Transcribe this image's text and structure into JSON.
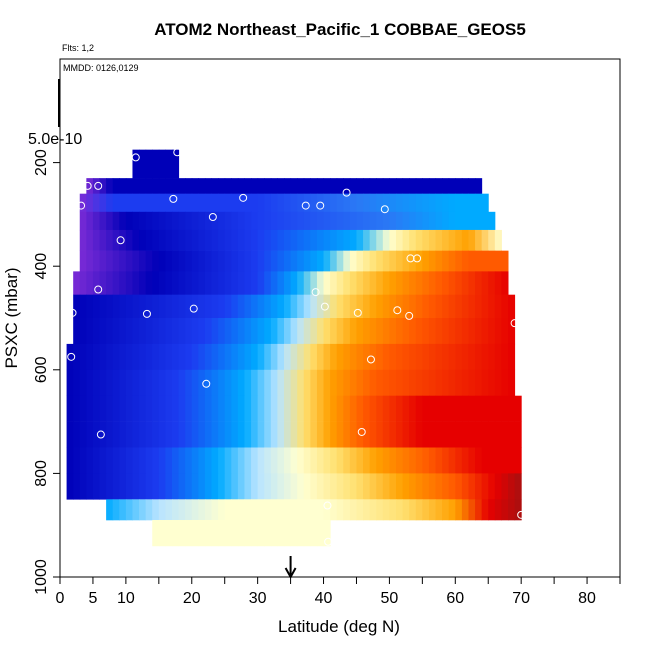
{
  "chart_data": {
    "type": "heatmap",
    "title": "ATOM2 Northeast_Pacific_1 COBBAE_GEOS5",
    "flights_label": "Flts: 1,2",
    "dates_label": "MMDD: 0126,0129",
    "colorbar_label": "5.0e-10",
    "xlabel": "Latitude (deg N)",
    "ylabel": "PSXC (mbar)",
    "xlim": [
      0,
      85
    ],
    "ylim": [
      1000,
      0
    ],
    "x_ticks": [
      0,
      5,
      10,
      20,
      30,
      40,
      50,
      60,
      70,
      80
    ],
    "x_tick_labels": [
      "0",
      "5",
      "10",
      "20",
      "30",
      "40",
      "50",
      "60",
      "70",
      "80"
    ],
    "x_minor_ticks": [
      15,
      25,
      35,
      45,
      55,
      65,
      75,
      85
    ],
    "y_ticks": [
      200,
      400,
      600,
      800,
      1000
    ],
    "y_tick_labels": [
      "200",
      "400",
      "600",
      "800",
      "1000"
    ],
    "arrow_latitude": 35,
    "colors": [
      "#00007a",
      "#0000b8",
      "#1c3cf0",
      "#2a78f5",
      "#00aaff",
      "#b8e4ff",
      "#ffffd0",
      "#ffe070",
      "#ffa000",
      "#ff5a00",
      "#e60000",
      "#a81010",
      "#7a2bd6"
    ],
    "bands": [
      {
        "p_top": 175,
        "p_bot": 230,
        "x_start": 11,
        "x_end": 18,
        "stops": [
          [
            11,
            1
          ]
        ]
      },
      {
        "p_top": 230,
        "p_bot": 260,
        "x_start": 4,
        "x_end": 64,
        "stops": [
          [
            4,
            12
          ],
          [
            8,
            1
          ],
          [
            40,
            1
          ],
          [
            64,
            1
          ]
        ]
      },
      {
        "p_top": 260,
        "p_bot": 295,
        "x_start": 3,
        "x_end": 65,
        "stops": [
          [
            3,
            12
          ],
          [
            8,
            2
          ],
          [
            30,
            2
          ],
          [
            45,
            3
          ],
          [
            60,
            4
          ],
          [
            65,
            4
          ]
        ]
      },
      {
        "p_top": 295,
        "p_bot": 330,
        "x_start": 3,
        "x_end": 66,
        "stops": [
          [
            3,
            12
          ],
          [
            10,
            1
          ],
          [
            30,
            2
          ],
          [
            50,
            3
          ],
          [
            60,
            4
          ],
          [
            66,
            4
          ]
        ]
      },
      {
        "p_top": 330,
        "p_bot": 370,
        "x_start": 3,
        "x_end": 67,
        "stops": [
          [
            3,
            12
          ],
          [
            12,
            1
          ],
          [
            30,
            2
          ],
          [
            45,
            4
          ],
          [
            50,
            6
          ],
          [
            54,
            7
          ],
          [
            62,
            8
          ],
          [
            67,
            6
          ]
        ]
      },
      {
        "p_top": 370,
        "p_bot": 410,
        "x_start": 3,
        "x_end": 68,
        "stops": [
          [
            3,
            12
          ],
          [
            15,
            1
          ],
          [
            30,
            2
          ],
          [
            40,
            4
          ],
          [
            44,
            6
          ],
          [
            48,
            7
          ],
          [
            55,
            8
          ],
          [
            62,
            9
          ],
          [
            68,
            9
          ]
        ]
      },
      {
        "p_top": 410,
        "p_bot": 455,
        "x_start": 2,
        "x_end": 68,
        "stops": [
          [
            2,
            12
          ],
          [
            14,
            1
          ],
          [
            30,
            2
          ],
          [
            36,
            4
          ],
          [
            40,
            6
          ],
          [
            44,
            7
          ],
          [
            50,
            8
          ],
          [
            58,
            9
          ],
          [
            68,
            10
          ]
        ]
      },
      {
        "p_top": 455,
        "p_bot": 500,
        "x_start": 2,
        "x_end": 69,
        "stops": [
          [
            2,
            1
          ],
          [
            25,
            2
          ],
          [
            34,
            4
          ],
          [
            38,
            5
          ],
          [
            42,
            7
          ],
          [
            48,
            8
          ],
          [
            56,
            9
          ],
          [
            69,
            10
          ]
        ]
      },
      {
        "p_top": 500,
        "p_bot": 550,
        "x_start": 2,
        "x_end": 69,
        "stops": [
          [
            2,
            1
          ],
          [
            22,
            2
          ],
          [
            32,
            4
          ],
          [
            36,
            5
          ],
          [
            40,
            7
          ],
          [
            45,
            8
          ],
          [
            54,
            9
          ],
          [
            69,
            10
          ]
        ]
      },
      {
        "p_top": 550,
        "p_bot": 600,
        "x_start": 1,
        "x_end": 69,
        "stops": [
          [
            1,
            1
          ],
          [
            20,
            2
          ],
          [
            30,
            4
          ],
          [
            34,
            5
          ],
          [
            38,
            7
          ],
          [
            42,
            8
          ],
          [
            50,
            9
          ],
          [
            69,
            10
          ]
        ]
      },
      {
        "p_top": 600,
        "p_bot": 650,
        "x_start": 1,
        "x_end": 69,
        "stops": [
          [
            1,
            1
          ],
          [
            18,
            2
          ],
          [
            28,
            4
          ],
          [
            33,
            5
          ],
          [
            37,
            7
          ],
          [
            41,
            8
          ],
          [
            48,
            9
          ],
          [
            69,
            10
          ]
        ]
      },
      {
        "p_top": 650,
        "p_bot": 700,
        "x_start": 1,
        "x_end": 70,
        "stops": [
          [
            1,
            1
          ],
          [
            18,
            2
          ],
          [
            28,
            4
          ],
          [
            33,
            5
          ],
          [
            37,
            7
          ],
          [
            41,
            8
          ],
          [
            46,
            9
          ],
          [
            55,
            10
          ],
          [
            70,
            10
          ]
        ]
      },
      {
        "p_top": 700,
        "p_bot": 750,
        "x_start": 1,
        "x_end": 70,
        "stops": [
          [
            1,
            1
          ],
          [
            18,
            2
          ],
          [
            28,
            4
          ],
          [
            33,
            5
          ],
          [
            37,
            7
          ],
          [
            41,
            8
          ],
          [
            46,
            9
          ],
          [
            55,
            10
          ],
          [
            70,
            10
          ]
        ]
      },
      {
        "p_top": 750,
        "p_bot": 800,
        "x_start": 1,
        "x_end": 70,
        "stops": [
          [
            1,
            1
          ],
          [
            15,
            2
          ],
          [
            24,
            4
          ],
          [
            30,
            5
          ],
          [
            36,
            6
          ],
          [
            42,
            7
          ],
          [
            48,
            8
          ],
          [
            56,
            9
          ],
          [
            64,
            10
          ],
          [
            70,
            10
          ]
        ]
      },
      {
        "p_top": 800,
        "p_bot": 850,
        "x_start": 1,
        "x_end": 70,
        "stops": [
          [
            1,
            1
          ],
          [
            15,
            2
          ],
          [
            24,
            4
          ],
          [
            30,
            5
          ],
          [
            37,
            6
          ],
          [
            45,
            7
          ],
          [
            52,
            8
          ],
          [
            60,
            9
          ],
          [
            66,
            10
          ],
          [
            70,
            11
          ]
        ]
      },
      {
        "p_top": 850,
        "p_bot": 890,
        "x_start": 7,
        "x_end": 70,
        "stops": [
          [
            7,
            4
          ],
          [
            15,
            5
          ],
          [
            25,
            6
          ],
          [
            40,
            6
          ],
          [
            52,
            7
          ],
          [
            60,
            8
          ],
          [
            65,
            10
          ],
          [
            70,
            11
          ]
        ]
      },
      {
        "p_top": 890,
        "p_bot": 940,
        "x_start": 14,
        "x_end": 41,
        "stops": [
          [
            14,
            6
          ],
          [
            41,
            6
          ]
        ]
      }
    ],
    "points": [
      [
        11.5,
        190
      ],
      [
        17.8,
        180
      ],
      [
        4.2,
        245
      ],
      [
        5.8,
        245
      ],
      [
        17.2,
        270
      ],
      [
        27.8,
        268
      ],
      [
        43.5,
        258
      ],
      [
        3.2,
        283
      ],
      [
        37.3,
        283
      ],
      [
        39.5,
        283
      ],
      [
        49.3,
        290
      ],
      [
        23.2,
        305
      ],
      [
        9.2,
        350
      ],
      [
        53.2,
        385
      ],
      [
        54.2,
        385
      ],
      [
        5.8,
        445
      ],
      [
        38.8,
        450
      ],
      [
        1.9,
        490
      ],
      [
        13.2,
        492
      ],
      [
        20.3,
        482
      ],
      [
        40.2,
        478
      ],
      [
        45.2,
        490
      ],
      [
        51.2,
        485
      ],
      [
        53.0,
        496
      ],
      [
        69.0,
        510
      ],
      [
        1.7,
        575
      ],
      [
        47.2,
        580
      ],
      [
        22.2,
        627
      ],
      [
        6.2,
        725
      ],
      [
        45.8,
        720
      ],
      [
        1.4,
        860
      ],
      [
        40.6,
        862
      ],
      [
        70.0,
        880
      ],
      [
        40.7,
        932
      ]
    ]
  }
}
